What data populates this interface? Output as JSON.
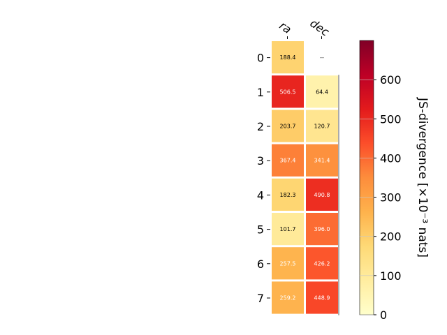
{
  "chart_data": {
    "type": "heatmap",
    "columns": [
      "ra",
      "dec"
    ],
    "rows": [
      "0",
      "1",
      "2",
      "3",
      "4",
      "5",
      "6",
      "7"
    ],
    "values": [
      [
        188.4,
        null
      ],
      [
        506.5,
        64.4
      ],
      [
        203.7,
        120.7
      ],
      [
        367.4,
        341.4
      ],
      [
        182.3,
        490.8
      ],
      [
        101.7,
        396.0
      ],
      [
        257.5,
        426.2
      ],
      [
        259.2,
        448.9
      ]
    ],
    "cell_labels": [
      [
        "188.4",
        "--"
      ],
      [
        "506.5",
        "64.4"
      ],
      [
        "203.7",
        "120.7"
      ],
      [
        "367.4",
        "341.4"
      ],
      [
        "182.3",
        "490.8"
      ],
      [
        "101.7",
        "396.0"
      ],
      [
        "257.5",
        "426.2"
      ],
      [
        "259.2",
        "448.9"
      ]
    ],
    "colorbar": {
      "label": "JS-divergence [×10⁻³ nats]",
      "range": [
        0,
        700
      ],
      "ticks": [
        0,
        100,
        200,
        300,
        400,
        500,
        600
      ],
      "colormap": "YlOrRd"
    }
  }
}
